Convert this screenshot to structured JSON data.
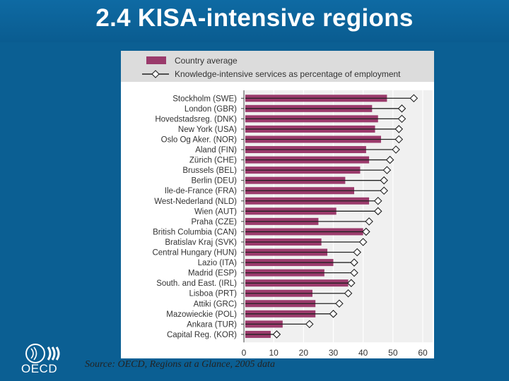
{
  "slide": {
    "title": "2.4 KISA-intensive regions",
    "source": "Source: OECD, Regions at a Glance, 2005 data",
    "logo_text": "OECD"
  },
  "colors": {
    "bar": "#9b3b6c",
    "background": "#0b5f93"
  },
  "chart_data": {
    "type": "bar",
    "orientation": "horizontal",
    "title": "",
    "xlabel": "",
    "ylabel": "",
    "xlim": [
      0,
      60
    ],
    "xticks": [
      0,
      10,
      20,
      30,
      40,
      50,
      60
    ],
    "legend": {
      "placement": "top",
      "entries": [
        "Country average",
        "Knowledge-intensive services as percentage of employment"
      ]
    },
    "categories": [
      "Stockholm (SWE)",
      "London (GBR)",
      "Hovedstadsreg. (DNK)",
      "New York (USA)",
      "Oslo Og Aker. (NOR)",
      "Aland (FIN)",
      "Zürich (CHE)",
      "Brussels (BEL)",
      "Berlin (DEU)",
      "Ile-de-France (FRA)",
      "West-Nederland (NLD)",
      "Wien (AUT)",
      "Praha (CZE)",
      "British Columbia (CAN)",
      "Bratislav Kraj (SVK)",
      "Central Hungary (HUN)",
      "Lazio (ITA)",
      "Madrid (ESP)",
      "South. and East. (IRL)",
      "Lisboa (PRT)",
      "Attiki (GRC)",
      "Mazowieckie (POL)",
      "Ankara (TUR)",
      "Capital Reg. (KOR)"
    ],
    "series": [
      {
        "name": "Country average",
        "type": "bar",
        "values": [
          48,
          43,
          45,
          44,
          46,
          41,
          42,
          39,
          34,
          37,
          42,
          31,
          25,
          40,
          26,
          28,
          30,
          27,
          35,
          23,
          24,
          24,
          13,
          9
        ]
      },
      {
        "name": "Knowledge-intensive services as percentage of employment",
        "type": "marker",
        "values": [
          57,
          53,
          53,
          52,
          52,
          51,
          49,
          48,
          47,
          47,
          45,
          45,
          42,
          41,
          40,
          38,
          37,
          37,
          36,
          35,
          32,
          30,
          22,
          11
        ]
      }
    ]
  }
}
